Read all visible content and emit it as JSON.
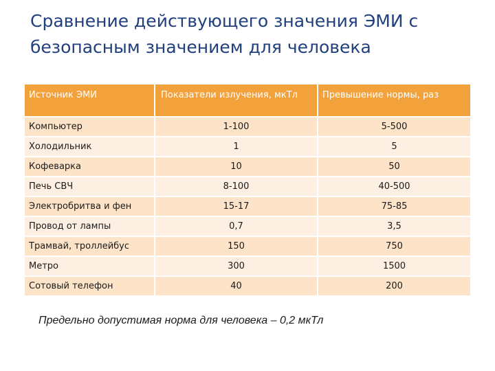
{
  "title": {
    "line1": "Сравнение действующего значения ЭМИ с",
    "line2": "безопасным значением для человека"
  },
  "table": {
    "headers": [
      "Источник ЭМИ",
      "Показатели излучения, мкТл",
      "Превышение нормы, раз"
    ],
    "rows": [
      [
        "Компьютер",
        "1-100",
        "5-500"
      ],
      [
        "Холодильник",
        "1",
        "5"
      ],
      [
        "Кофеварка",
        "10",
        "50"
      ],
      [
        "Печь СВЧ",
        "8-100",
        "40-500"
      ],
      [
        "Электробритва и фен",
        "15-17",
        "75-85"
      ],
      [
        "Провод от лампы",
        "0,7",
        "3,5"
      ],
      [
        "Трамвай, троллейбус",
        "150",
        "750"
      ],
      [
        "Метро",
        "300",
        "1500"
      ],
      [
        "Сотовый телефон",
        "40",
        "200"
      ]
    ]
  },
  "note": "Предельно допустимая норма для человека – 0,2 мкТл",
  "colors": {
    "title": "#1f3f7d",
    "header_bg": "#f2a13b",
    "row_odd": "#fde3c8",
    "row_even": "#fdf0e2"
  }
}
